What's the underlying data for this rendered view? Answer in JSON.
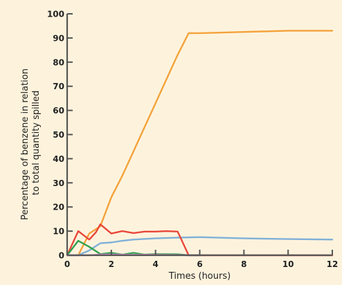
{
  "chart_data": {
    "type": "line",
    "title": "",
    "xlabel": "Times (hours)",
    "ylabel_lines": [
      "Percentage of benzene in relation",
      "to total quantity spilled"
    ],
    "xlim": [
      0,
      12
    ],
    "ylim": [
      0,
      100
    ],
    "x_ticks": [
      0,
      2,
      4,
      6,
      8,
      10,
      12
    ],
    "y_ticks": [
      0,
      10,
      20,
      30,
      40,
      50,
      60,
      70,
      80,
      90,
      100
    ],
    "grid": false,
    "legend": "none",
    "background_color": "#fdf3dd",
    "series": [
      {
        "color": "#f5a23a",
        "points": [
          [
            0,
            0
          ],
          [
            0.5,
            0
          ],
          [
            1,
            9
          ],
          [
            1.5,
            12
          ],
          [
            2,
            24
          ],
          [
            2.5,
            33
          ],
          [
            3,
            43
          ],
          [
            3.5,
            53
          ],
          [
            4,
            63
          ],
          [
            4.5,
            73
          ],
          [
            5,
            83
          ],
          [
            5.5,
            92
          ],
          [
            6,
            92
          ],
          [
            8,
            92.5
          ],
          [
            10,
            93
          ],
          [
            12,
            93
          ]
        ]
      },
      {
        "color": "#7fb0d8",
        "points": [
          [
            0,
            0
          ],
          [
            0.5,
            0
          ],
          [
            1,
            2
          ],
          [
            1.5,
            5
          ],
          [
            2,
            5.3
          ],
          [
            2.5,
            6
          ],
          [
            3,
            6.5
          ],
          [
            4,
            7
          ],
          [
            5,
            7.3
          ],
          [
            6,
            7.5
          ],
          [
            8,
            7
          ],
          [
            10,
            6.7
          ],
          [
            12,
            6.5
          ]
        ]
      },
      {
        "color": "#e8473a",
        "points": [
          [
            0,
            0
          ],
          [
            0.5,
            10
          ],
          [
            1,
            6.5
          ],
          [
            1.3,
            9.5
          ],
          [
            1.5,
            12.8
          ],
          [
            2,
            9
          ],
          [
            2.5,
            10
          ],
          [
            3,
            9.2
          ],
          [
            3.5,
            9.8
          ],
          [
            4,
            9.8
          ],
          [
            4.5,
            10
          ],
          [
            5,
            9.8
          ],
          [
            5.5,
            0
          ],
          [
            6,
            0
          ],
          [
            8,
            0
          ],
          [
            10,
            0
          ],
          [
            12,
            0
          ]
        ]
      },
      {
        "color": "#2fa050",
        "points": [
          [
            0,
            0
          ],
          [
            0.5,
            6
          ],
          [
            1,
            3.5
          ],
          [
            1.5,
            0.5
          ],
          [
            2,
            1
          ],
          [
            2.5,
            0.3
          ],
          [
            3,
            1
          ],
          [
            3.5,
            0.3
          ],
          [
            4,
            0.5
          ],
          [
            5,
            0.4
          ],
          [
            5.5,
            0
          ],
          [
            6,
            0
          ]
        ]
      },
      {
        "color": "#d98ac8",
        "points": [
          [
            0,
            0
          ],
          [
            0.5,
            0
          ],
          [
            1,
            0
          ],
          [
            1.5,
            0.3
          ],
          [
            2,
            0.3
          ],
          [
            3,
            0.2
          ],
          [
            4,
            0.2
          ],
          [
            5,
            0.1
          ],
          [
            5.5,
            0
          ],
          [
            6,
            0
          ]
        ]
      }
    ]
  }
}
